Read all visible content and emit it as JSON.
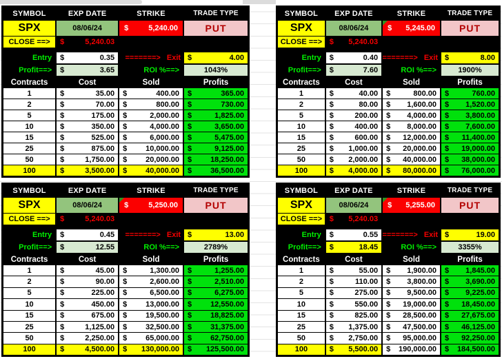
{
  "colors": {
    "card-black": "#000000",
    "cell-yellow": "#ffff00",
    "date-green": "#93c47d",
    "strike-red": "#fb0000",
    "trade-pink": "#f2c6c8",
    "trade-red": "#b30000",
    "label-green": "#00f000",
    "pale-green": "#d7e9d1",
    "bright-green": "#00e10c",
    "close-red": "#f40000",
    "grid-line": "#e3e3e3",
    "strip-gray": "#dcdcdc",
    "marker-green": "#2d9420"
  },
  "labels": {
    "symbol": "SYMBOL",
    "exp_date": "EXP DATE",
    "strike": "STRIKE",
    "trade_type": "TRADE TYPE",
    "close": "CLOSE ==>",
    "entry": "Entry",
    "exit_arrow": "=======>",
    "exit": "Exit",
    "profit": "Profit==>",
    "roi": "ROI %==>",
    "dollar": "$",
    "contracts": "Contracts",
    "cost": "Cost",
    "sold": "Sold",
    "profits": "Profits"
  },
  "cards": [
    {
      "symbol": "SPX",
      "exp_date": "08/06/24",
      "strike": "5,240.00",
      "trade_type": "PUT",
      "close_value": "5,240.03",
      "entry": "0.35",
      "exit": "4.00",
      "profit": "3.65",
      "roi": "1043%",
      "note_marker": false,
      "profit_cell_yellow": false,
      "last_row_sold_yellow": true,
      "rows": [
        [
          "1",
          "35.00",
          "400.00",
          "365.00"
        ],
        [
          "2",
          "70.00",
          "800.00",
          "730.00"
        ],
        [
          "5",
          "175.00",
          "2,000.00",
          "1,825.00"
        ],
        [
          "10",
          "350.00",
          "4,000.00",
          "3,650.00"
        ],
        [
          "15",
          "525.00",
          "6,000.00",
          "5,475.00"
        ],
        [
          "25",
          "875.00",
          "10,000.00",
          "9,125.00"
        ],
        [
          "50",
          "1,750.00",
          "20,000.00",
          "18,250.00"
        ],
        [
          "100",
          "3,500.00",
          "40,000.00",
          "36,500.00"
        ]
      ]
    },
    {
      "symbol": "SPX",
      "exp_date": "08/06/24",
      "strike": "5,245.00",
      "trade_type": "PUT",
      "close_value": "5,240.03",
      "entry": "0.40",
      "exit": "8.00",
      "profit": "7.60",
      "roi": "1900%",
      "note_marker": true,
      "profit_cell_yellow": false,
      "last_row_sold_yellow": true,
      "rows": [
        [
          "1",
          "40.00",
          "800.00",
          "760.00"
        ],
        [
          "2",
          "80.00",
          "1,600.00",
          "1,520.00"
        ],
        [
          "5",
          "200.00",
          "4,000.00",
          "3,800.00"
        ],
        [
          "10",
          "400.00",
          "8,000.00",
          "7,600.00"
        ],
        [
          "15",
          "600.00",
          "12,000.00",
          "11,400.00"
        ],
        [
          "25",
          "1,000.00",
          "20,000.00",
          "19,000.00"
        ],
        [
          "50",
          "2,000.00",
          "40,000.00",
          "38,000.00"
        ],
        [
          "100",
          "4,000.00",
          "80,000.00",
          "76,000.00"
        ]
      ]
    },
    {
      "symbol": "SPX",
      "exp_date": "08/06/24",
      "strike": "5,250.00",
      "trade_type": "PUT",
      "close_value": "5,240.03",
      "entry": "0.45",
      "exit": "13.00",
      "profit": "12.55",
      "roi": "2789%",
      "note_marker": true,
      "profit_cell_yellow": false,
      "last_row_sold_yellow": true,
      "rows": [
        [
          "1",
          "45.00",
          "1,300.00",
          "1,255.00"
        ],
        [
          "2",
          "90.00",
          "2,600.00",
          "2,510.00"
        ],
        [
          "5",
          "225.00",
          "6,500.00",
          "6,275.00"
        ],
        [
          "10",
          "450.00",
          "13,000.00",
          "12,550.00"
        ],
        [
          "15",
          "675.00",
          "19,500.00",
          "18,825.00"
        ],
        [
          "25",
          "1,125.00",
          "32,500.00",
          "31,375.00"
        ],
        [
          "50",
          "2,250.00",
          "65,000.00",
          "62,750.00"
        ],
        [
          "100",
          "4,500.00",
          "130,000.00",
          "125,500.00"
        ]
      ]
    },
    {
      "symbol": "SPX",
      "exp_date": "08/06/24",
      "strike": "5,255.00",
      "trade_type": "PUT",
      "close_value": "5,240.03",
      "entry": "0.55",
      "exit": "19.00",
      "profit": "18.45",
      "roi": "3355%",
      "note_marker": true,
      "profit_cell_yellow": true,
      "last_row_sold_yellow": false,
      "rows": [
        [
          "1",
          "55.00",
          "1,900.00",
          "1,845.00"
        ],
        [
          "2",
          "110.00",
          "3,800.00",
          "3,690.00"
        ],
        [
          "5",
          "275.00",
          "9,500.00",
          "9,225.00"
        ],
        [
          "10",
          "550.00",
          "19,000.00",
          "18,450.00"
        ],
        [
          "15",
          "825.00",
          "28,500.00",
          "27,675.00"
        ],
        [
          "25",
          "1,375.00",
          "47,500.00",
          "46,125.00"
        ],
        [
          "50",
          "2,750.00",
          "95,000.00",
          "92,250.00"
        ],
        [
          "100",
          "5,500.00",
          "190,000.00",
          "184,500.00"
        ]
      ]
    }
  ]
}
